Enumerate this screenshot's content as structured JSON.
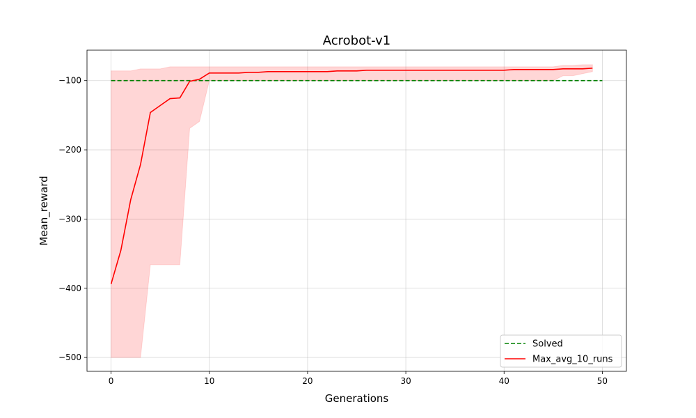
{
  "chart_data": {
    "type": "line",
    "title": "Acrobot-v1",
    "xlabel": "Generations",
    "ylabel": "Mean_reward",
    "xlim": [
      -2.45,
      52.45
    ],
    "ylim": [
      -520,
      -56
    ],
    "xticks": [
      0,
      10,
      20,
      30,
      40,
      50
    ],
    "yticks": [
      -500,
      -400,
      -300,
      -200,
      -100
    ],
    "xtick_labels": [
      "0",
      "10",
      "20",
      "30",
      "40",
      "50"
    ],
    "ytick_labels": [
      "−500",
      "−400",
      "−300",
      "−200",
      "−100"
    ],
    "grid": true,
    "legend_position": "lower-right",
    "series": [
      {
        "name": "Max_avg_10_runs",
        "color": "#ff0000",
        "style": "solid",
        "x": [
          0,
          1,
          2,
          3,
          4,
          5,
          6,
          7,
          8,
          9,
          10,
          11,
          12,
          13,
          14,
          15,
          16,
          17,
          18,
          19,
          20,
          21,
          22,
          23,
          24,
          25,
          26,
          27,
          28,
          29,
          30,
          31,
          32,
          33,
          34,
          35,
          36,
          37,
          38,
          39,
          40,
          41,
          42,
          43,
          44,
          45,
          46,
          47,
          48,
          49
        ],
        "y": [
          -394,
          -345,
          -272,
          -221,
          -146,
          -136,
          -126,
          -125,
          -101,
          -98,
          -89,
          -89,
          -89,
          -89,
          -88,
          -88,
          -87,
          -87,
          -87,
          -87,
          -87,
          -87,
          -87,
          -86,
          -86,
          -86,
          -85,
          -85,
          -85,
          -85,
          -85,
          -85,
          -85,
          -85,
          -85,
          -85,
          -85,
          -85,
          -85,
          -85,
          -85,
          -84,
          -84,
          -84,
          -84,
          -84,
          -83,
          -83,
          -83,
          -82
        ]
      },
      {
        "name": "Solved",
        "color": "#008000",
        "style": "dashed",
        "x": [
          0,
          50
        ],
        "y": [
          -100,
          -100
        ]
      }
    ],
    "band": {
      "color": "#ff0000",
      "opacity": 0.16,
      "x": [
        0,
        1,
        2,
        3,
        4,
        5,
        6,
        7,
        8,
        9,
        10,
        11,
        12,
        13,
        14,
        15,
        16,
        17,
        18,
        19,
        20,
        21,
        22,
        23,
        24,
        25,
        26,
        27,
        28,
        29,
        30,
        31,
        32,
        33,
        34,
        35,
        36,
        37,
        38,
        39,
        40,
        41,
        42,
        43,
        44,
        45,
        46,
        47,
        48,
        49
      ],
      "upper": [
        -86,
        -86,
        -86,
        -83,
        -83,
        -83,
        -80,
        -80,
        -80,
        -80,
        -80,
        -80,
        -80,
        -80,
        -80,
        -80,
        -80,
        -80,
        -80,
        -80,
        -80,
        -80,
        -80,
        -80,
        -80,
        -80,
        -80,
        -80,
        -80,
        -80,
        -80,
        -80,
        -80,
        -80,
        -80,
        -80,
        -80,
        -80,
        -80,
        -80,
        -80,
        -80,
        -80,
        -80,
        -80,
        -80,
        -78,
        -78,
        -77,
        -77
      ],
      "lower": [
        -500,
        -500,
        -500,
        -500,
        -366,
        -366,
        -366,
        -366,
        -169,
        -159,
        -100,
        -100,
        -100,
        -100,
        -100,
        -100,
        -100,
        -100,
        -100,
        -100,
        -100,
        -100,
        -100,
        -100,
        -100,
        -100,
        -100,
        -100,
        -100,
        -100,
        -100,
        -100,
        -100,
        -100,
        -100,
        -100,
        -100,
        -100,
        -100,
        -100,
        -100,
        -100,
        -100,
        -100,
        -100,
        -100,
        -93,
        -93,
        -90,
        -87
      ]
    },
    "legend": [
      {
        "label": "Solved",
        "color": "#008000",
        "style": "dashed"
      },
      {
        "label": "Max_avg_10_runs",
        "color": "#ff0000",
        "style": "solid"
      }
    ]
  }
}
